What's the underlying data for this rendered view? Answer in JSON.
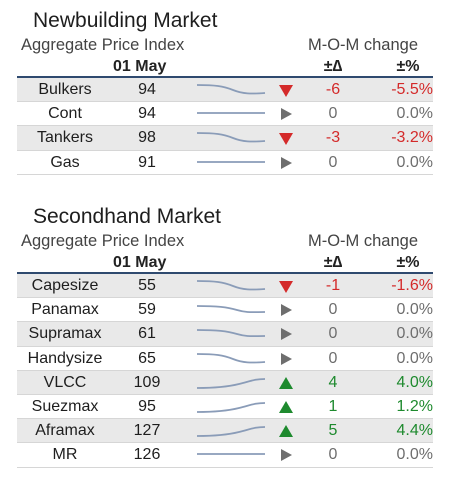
{
  "markets": [
    {
      "title": "Newbuilding Market",
      "index_label": "Aggregate Price Index",
      "change_label": "M-O-M change",
      "date": "01 May",
      "delta_label": "±∆",
      "pct_label": "±%",
      "rows": [
        {
          "name": "Bulkers",
          "value": "94",
          "delta": "-6",
          "pct": "-5.5%",
          "trend": "down",
          "spark": "down"
        },
        {
          "name": "Cont",
          "value": "94",
          "delta": "0",
          "pct": "0.0%",
          "trend": "flat",
          "spark": "flat"
        },
        {
          "name": "Tankers",
          "value": "98",
          "delta": "-3",
          "pct": "-3.2%",
          "trend": "down",
          "spark": "down"
        },
        {
          "name": "Gas",
          "value": "91",
          "delta": "0",
          "pct": "0.0%",
          "trend": "flat",
          "spark": "flat"
        }
      ]
    },
    {
      "title": "Secondhand Market",
      "index_label": "Aggregate Price Index",
      "change_label": "M-O-M change",
      "date": "01 May",
      "delta_label": "±∆",
      "pct_label": "±%",
      "rows": [
        {
          "name": "Capesize",
          "value": "55",
          "delta": "-1",
          "pct": "-1.6%",
          "trend": "down",
          "spark": "down"
        },
        {
          "name": "Panamax",
          "value": "59",
          "delta": "0",
          "pct": "0.0%",
          "trend": "flat",
          "spark": "slight-down"
        },
        {
          "name": "Supramax",
          "value": "61",
          "delta": "0",
          "pct": "0.0%",
          "trend": "flat",
          "spark": "slight-down"
        },
        {
          "name": "Handysize",
          "value": "65",
          "delta": "0",
          "pct": "0.0%",
          "trend": "flat",
          "spark": "down"
        },
        {
          "name": "VLCC",
          "value": "109",
          "delta": "4",
          "pct": "4.0%",
          "trend": "up",
          "spark": "up"
        },
        {
          "name": "Suezmax",
          "value": "95",
          "delta": "1",
          "pct": "1.2%",
          "trend": "up",
          "spark": "up"
        },
        {
          "name": "Aframax",
          "value": "127",
          "delta": "5",
          "pct": "4.4%",
          "trend": "up",
          "spark": "up"
        },
        {
          "name": "MR",
          "value": "126",
          "delta": "0",
          "pct": "0.0%",
          "trend": "flat",
          "spark": "flat"
        }
      ]
    }
  ],
  "colors": {
    "down": "#d42a2a",
    "up": "#1e8a2e",
    "flat": "#6e6e6e",
    "spark": "#8a9cb8",
    "rule": "#2f4a6f"
  }
}
